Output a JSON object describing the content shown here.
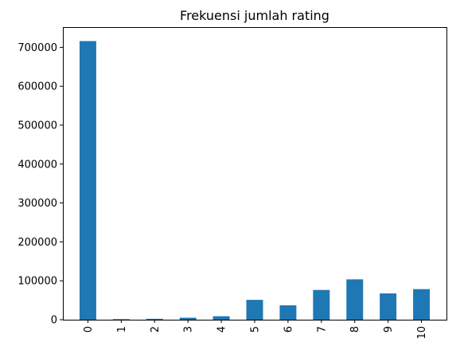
{
  "chart_data": {
    "type": "bar",
    "title": "Frekuensi jumlah rating",
    "xlabel": "",
    "ylabel": "",
    "categories": [
      "0",
      "1",
      "2",
      "3",
      "4",
      "5",
      "6",
      "7",
      "8",
      "9",
      "10"
    ],
    "values": [
      716109,
      1481,
      2375,
      5118,
      8904,
      50974,
      36924,
      76457,
      103736,
      67541,
      78610
    ],
    "ylim": [
      0,
      752000
    ],
    "yticks": [
      0,
      100000,
      200000,
      300000,
      400000,
      500000,
      600000,
      700000
    ],
    "ytick_labels": [
      "0",
      "100000",
      "200000",
      "300000",
      "400000",
      "500000",
      "600000",
      "700000"
    ],
    "bar_color": "#1f77b4",
    "grid": false,
    "legend": "none"
  }
}
